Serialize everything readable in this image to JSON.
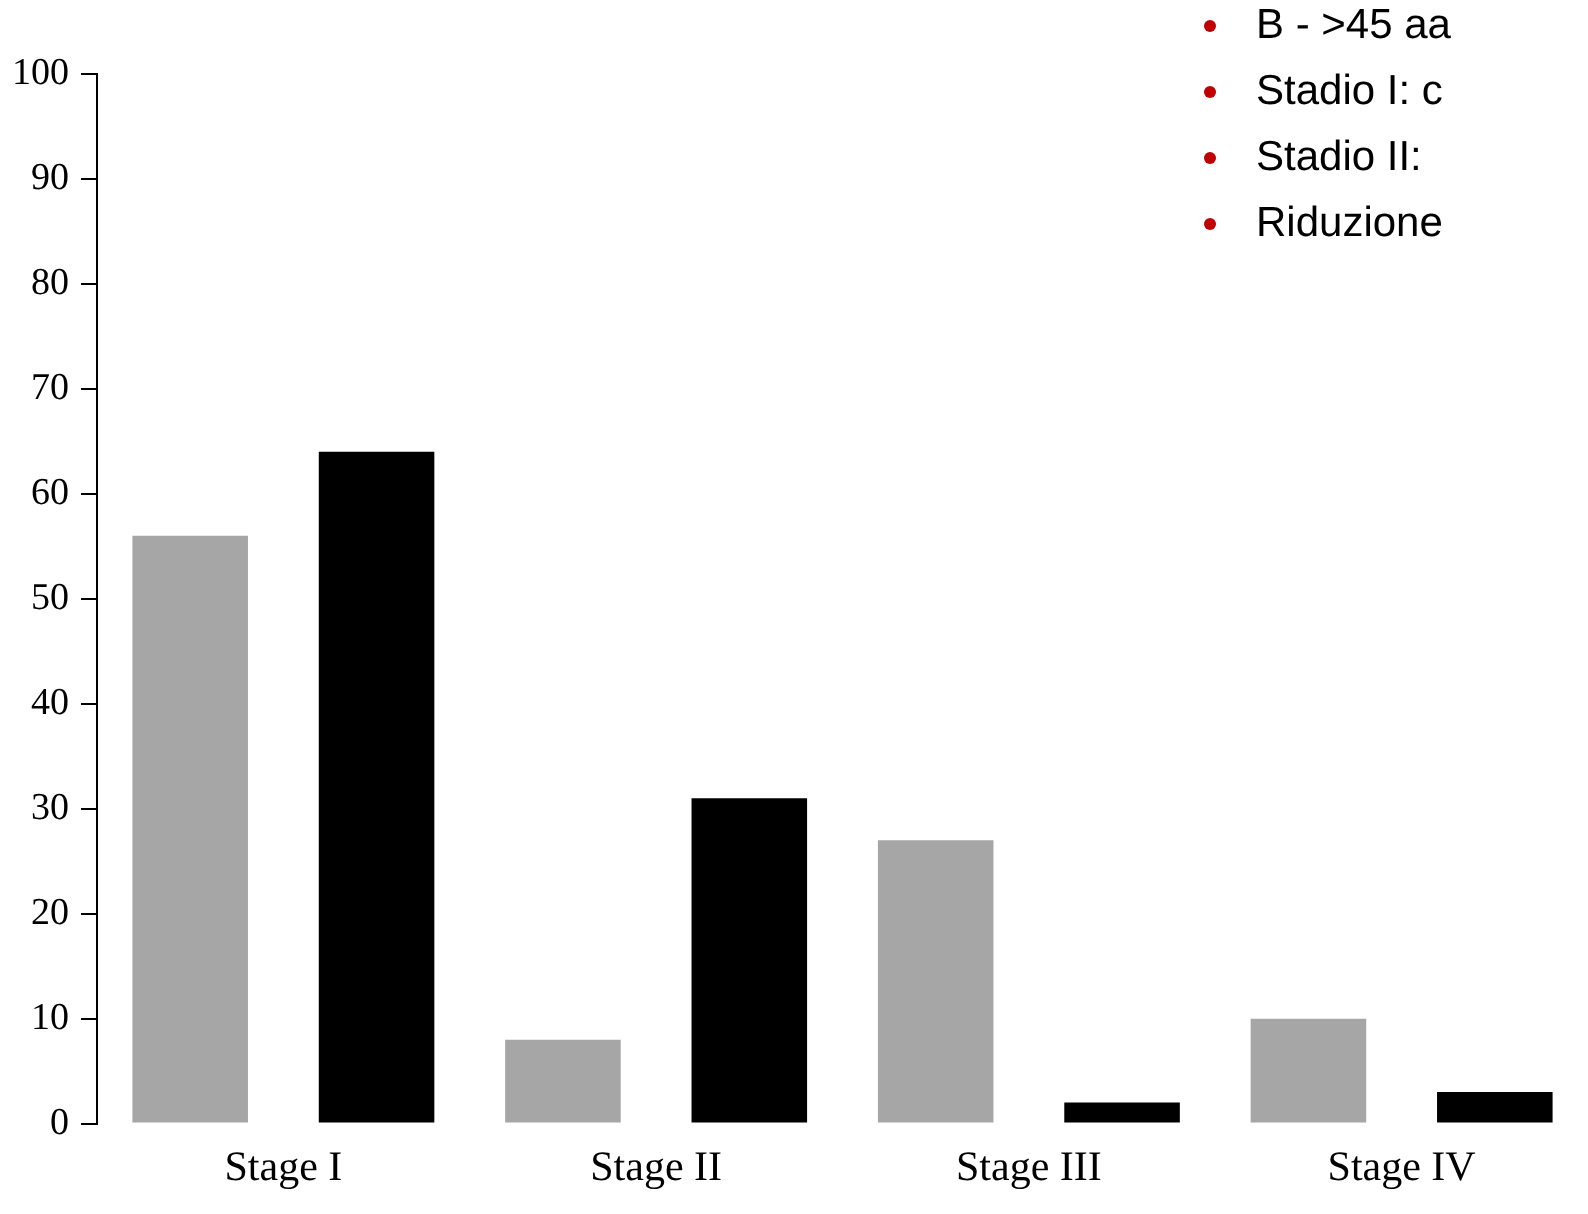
{
  "chart_data": {
    "type": "bar",
    "categories": [
      "Stage I",
      "Stage II",
      "Stage III",
      "Stage IV"
    ],
    "series": [
      {
        "color": "#a6a6a6",
        "values": [
          56,
          8,
          27,
          10
        ]
      },
      {
        "color": "#000000",
        "values": [
          64,
          31,
          2,
          3
        ]
      }
    ],
    "ylim": [
      0,
      100
    ],
    "yticks": [
      0,
      10,
      20,
      30,
      40,
      50,
      60,
      70,
      80,
      90,
      100
    ],
    "grid": false,
    "legend": false,
    "annotations": [
      "B - >45 aa",
      "Stadio I: c",
      "Stadio II:",
      "Riduzione"
    ]
  }
}
